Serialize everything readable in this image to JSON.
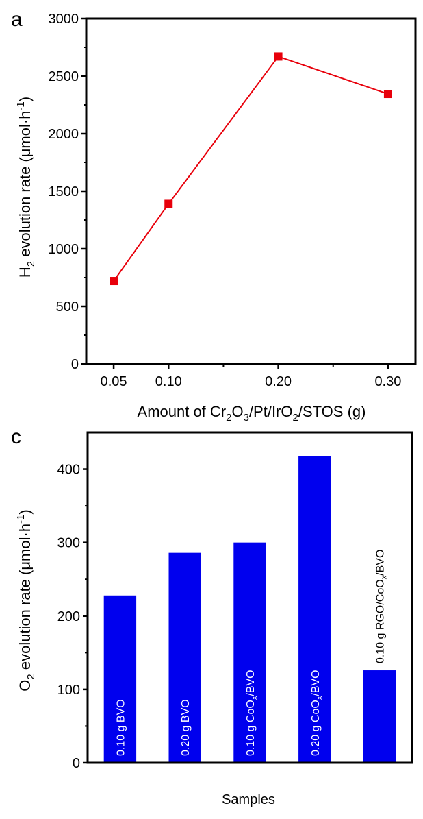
{
  "chart_data": [
    {
      "panel_label": "a",
      "type": "line",
      "title": "",
      "xlabel": "Amount of Cr₂O₃/Pt/IrO₂/STOS (g)",
      "xlabel_parts": [
        {
          "t": "Amount of Cr"
        },
        {
          "t": "2",
          "sub": true
        },
        {
          "t": "O"
        },
        {
          "t": "3",
          "sub": true
        },
        {
          "t": "/Pt/IrO"
        },
        {
          "t": "2",
          "sub": true
        },
        {
          "t": "/STOS (g)"
        }
      ],
      "ylabel": "H₂ evolution rate (μmol·h⁻¹)",
      "ylabel_parts": [
        {
          "t": "H"
        },
        {
          "t": "2",
          "sub": true
        },
        {
          "t": " evolution rate (μmol·h"
        },
        {
          "t": "-1",
          "sup": true
        },
        {
          "t": ")"
        }
      ],
      "x": [
        0.05,
        0.1,
        0.2,
        0.3
      ],
      "series": [
        {
          "name": "H2 evolution",
          "color": "#e8000b",
          "marker": "square",
          "values": [
            720,
            1390,
            2670,
            2345
          ]
        }
      ],
      "xlim": [
        0.025,
        0.325
      ],
      "ylim": [
        0,
        3000
      ],
      "xticks": [
        0.05,
        0.1,
        0.2,
        0.3
      ],
      "xtick_labels": [
        "0.05",
        "0.10",
        "0.20",
        "0.30"
      ],
      "xminor": [
        0.15,
        0.25
      ],
      "yticks": [
        0,
        500,
        1000,
        1500,
        2000,
        2500,
        3000
      ],
      "ytick_labels": [
        "0",
        "500",
        "1000",
        "1500",
        "2000",
        "2500",
        "3000"
      ],
      "grid": false,
      "legend": "none"
    },
    {
      "panel_label": "c",
      "type": "bar",
      "title": "",
      "xlabel": "Samples",
      "ylabel": "O₂ evolution rate (μmol·h⁻¹)",
      "ylabel_parts": [
        {
          "t": "O"
        },
        {
          "t": "2",
          "sub": true
        },
        {
          "t": " evolution rate (μmol·h"
        },
        {
          "t": "-1",
          "sup": true
        },
        {
          "t": ")"
        }
      ],
      "categories": [
        "0.10 g BVO",
        "0.20 g BVO",
        "0.10 g CoOx/BVO",
        "0.20 g CoOx/BVO",
        "0.10 g RGO/CoOx/BVO"
      ],
      "category_parts": [
        [
          {
            "t": "0.10 g BVO"
          }
        ],
        [
          {
            "t": "0.20 g BVO"
          }
        ],
        [
          {
            "t": "0.10 g CoO"
          },
          {
            "t": "x",
            "sub": true
          },
          {
            "t": "/BVO"
          }
        ],
        [
          {
            "t": "0.20 g CoO"
          },
          {
            "t": "x",
            "sub": true
          },
          {
            "t": "/BVO"
          }
        ],
        [
          {
            "t": "0.10 g RGO/CoO"
          },
          {
            "t": "x",
            "sub": true
          },
          {
            "t": "/BVO"
          }
        ]
      ],
      "label_inside": [
        true,
        true,
        true,
        true,
        false
      ],
      "values": [
        228,
        286,
        300,
        418,
        126
      ],
      "color": "#0000ee",
      "ylim": [
        0,
        450
      ],
      "yticks": [
        0,
        100,
        200,
        300,
        400
      ],
      "ytick_labels": [
        "0",
        "100",
        "200",
        "300",
        "400"
      ],
      "yminor": [
        50,
        150,
        250,
        350
      ],
      "grid": false,
      "legend": "none"
    }
  ]
}
